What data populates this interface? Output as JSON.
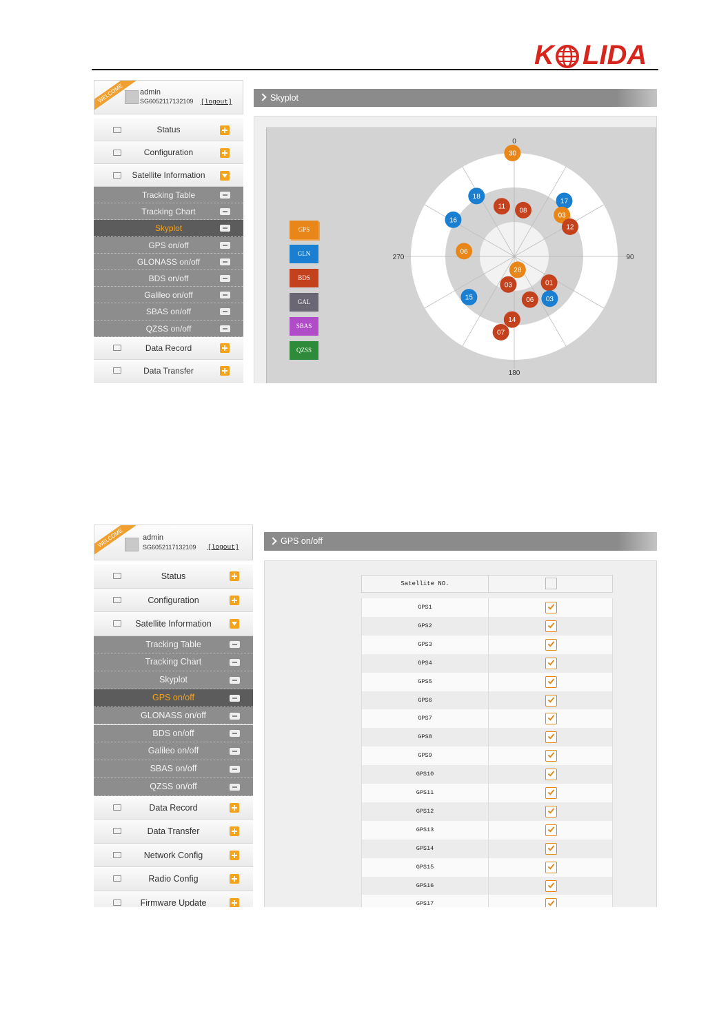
{
  "header": {
    "logo": {
      "left": "K",
      "right": "LIDA"
    }
  },
  "screenshots": [
    {
      "user": {
        "badge": "WELCOME",
        "name": "admin",
        "serial": "SG6052117132109",
        "logout": "[logout]"
      },
      "menu": [
        {
          "label": "Status",
          "kind": "main"
        },
        {
          "label": "Configuration",
          "kind": "main"
        },
        {
          "label": "Satellite Information",
          "kind": "main",
          "expanded": true
        },
        {
          "label": "Tracking Table",
          "kind": "sub"
        },
        {
          "label": "Tracking Chart",
          "kind": "sub"
        },
        {
          "label": "Skyplot",
          "kind": "sub",
          "active": true
        },
        {
          "label": "GPS on/off",
          "kind": "sub"
        },
        {
          "label": "GLONASS on/off",
          "kind": "sub"
        },
        {
          "label": "BDS on/off",
          "kind": "sub"
        },
        {
          "label": "Galileo on/off",
          "kind": "sub"
        },
        {
          "label": "SBAS on/off",
          "kind": "sub"
        },
        {
          "label": "QZSS on/off",
          "kind": "sub"
        },
        {
          "label": "Data Record",
          "kind": "main"
        },
        {
          "label": "Data Transfer",
          "kind": "main"
        }
      ],
      "panel_title": "Skyplot",
      "skyplot": {
        "azimuth_ticks": [
          0,
          90,
          180,
          270
        ],
        "legend": [
          {
            "label": "GPS",
            "color": "#e8861a"
          },
          {
            "label": "GLN",
            "color": "#1a7fd0"
          },
          {
            "label": "BDS",
            "color": "#c4411e"
          },
          {
            "label": "GAL",
            "color": "#6b6673"
          },
          {
            "label": "SBAS",
            "color": "#b04cc8"
          },
          {
            "label": "QZSS",
            "color": "#2e8b3a"
          }
        ],
        "satellites": [
          {
            "label": "30",
            "color": "#e8861a",
            "azimuth": 359,
            "elevation": 0
          },
          {
            "label": "18",
            "color": "#1a7fd0",
            "azimuth": 328,
            "elevation": 28
          },
          {
            "label": "11",
            "color": "#c4411e",
            "azimuth": 346,
            "elevation": 45
          },
          {
            "label": "08",
            "color": "#c4411e",
            "azimuth": 11,
            "elevation": 49
          },
          {
            "label": "17",
            "color": "#1a7fd0",
            "azimuth": 42,
            "elevation": 25
          },
          {
            "label": "03",
            "color": "#e8861a",
            "azimuth": 49,
            "elevation": 35
          },
          {
            "label": "12",
            "color": "#c4411e",
            "azimuth": 62,
            "elevation": 35
          },
          {
            "label": "16",
            "color": "#1a7fd0",
            "azimuth": 301,
            "elevation": 28
          },
          {
            "label": "06",
            "color": "#e8861a",
            "azimuth": 276,
            "elevation": 46
          },
          {
            "label": "28",
            "color": "#e8861a",
            "azimuth": 166,
            "elevation": 78
          },
          {
            "label": "03",
            "color": "#c4411e",
            "azimuth": 192,
            "elevation": 65
          },
          {
            "label": "01",
            "color": "#c4411e",
            "azimuth": 127,
            "elevation": 52
          },
          {
            "label": "06",
            "color": "#c4411e",
            "azimuth": 160,
            "elevation": 50
          },
          {
            "label": "03",
            "color": "#1a7fd0",
            "azimuth": 140,
            "elevation": 42
          },
          {
            "label": "15",
            "color": "#1a7fd0",
            "azimuth": 228,
            "elevation": 37
          },
          {
            "label": "14",
            "color": "#c4411e",
            "azimuth": 182,
            "elevation": 35
          },
          {
            "label": "07",
            "color": "#c4411e",
            "azimuth": 190,
            "elevation": 23
          }
        ]
      }
    },
    {
      "user": {
        "badge": "WELCOME",
        "name": "admin",
        "serial": "SG6052117132109",
        "logout": "[logout]"
      },
      "menu": [
        {
          "label": "Status",
          "kind": "main"
        },
        {
          "label": "Configuration",
          "kind": "main"
        },
        {
          "label": "Satellite Information",
          "kind": "main",
          "expanded": true
        },
        {
          "label": "Tracking Table",
          "kind": "sub"
        },
        {
          "label": "Tracking Chart",
          "kind": "sub"
        },
        {
          "label": "Skyplot",
          "kind": "sub"
        },
        {
          "label": "GPS on/off",
          "kind": "sub",
          "active": true
        },
        {
          "label": "GLONASS on/off",
          "kind": "sub"
        },
        {
          "label": "BDS on/off",
          "kind": "sub"
        },
        {
          "label": "Galileo on/off",
          "kind": "sub"
        },
        {
          "label": "SBAS on/off",
          "kind": "sub"
        },
        {
          "label": "QZSS on/off",
          "kind": "sub"
        },
        {
          "label": "Data Record",
          "kind": "main"
        },
        {
          "label": "Data Transfer",
          "kind": "main"
        },
        {
          "label": "Network Config",
          "kind": "main"
        },
        {
          "label": "Radio Config",
          "kind": "main"
        },
        {
          "label": "Firmware Update",
          "kind": "main"
        }
      ],
      "panel_title": "GPS on/off",
      "table": {
        "header": "Satellite NO.",
        "header_checked": false,
        "rows": [
          {
            "label": "GPS1",
            "checked": true
          },
          {
            "label": "GPS2",
            "checked": true
          },
          {
            "label": "GPS3",
            "checked": true
          },
          {
            "label": "GPS4",
            "checked": true
          },
          {
            "label": "GPS5",
            "checked": true
          },
          {
            "label": "GPS6",
            "checked": true
          },
          {
            "label": "GPS7",
            "checked": true
          },
          {
            "label": "GPS8",
            "checked": true
          },
          {
            "label": "GPS9",
            "checked": true
          },
          {
            "label": "GPS10",
            "checked": true
          },
          {
            "label": "GPS11",
            "checked": true
          },
          {
            "label": "GPS12",
            "checked": true
          },
          {
            "label": "GPS13",
            "checked": true
          },
          {
            "label": "GPS14",
            "checked": true
          },
          {
            "label": "GPS15",
            "checked": true
          },
          {
            "label": "GPS16",
            "checked": true
          },
          {
            "label": "GPS17",
            "checked": true
          }
        ]
      }
    }
  ]
}
